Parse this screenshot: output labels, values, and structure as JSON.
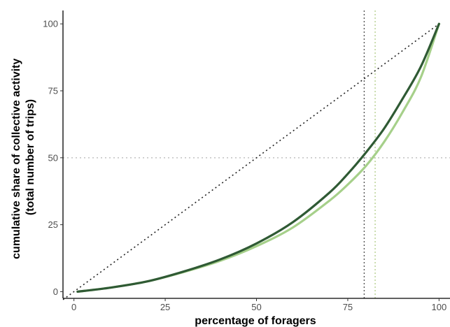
{
  "chart_data": {
    "type": "line",
    "xlabel": "percentage of foragers",
    "ylabel_lines": [
      "cumulative share of collective activity",
      "(total number of trips)"
    ],
    "xlim": [
      -3,
      103
    ],
    "ylim": [
      -2.5,
      105
    ],
    "x_ticks": [
      0,
      25,
      50,
      75,
      100
    ],
    "y_ticks": [
      0,
      25,
      50,
      75,
      100
    ],
    "grid": false,
    "x": [
      1,
      10,
      20,
      30,
      40,
      50,
      60,
      70,
      75,
      80,
      85,
      90,
      95,
      100
    ],
    "series": [
      {
        "color": "#2f5a34",
        "values": [
          0,
          1.5,
          3.8,
          7.5,
          12,
          18,
          26,
          37,
          44,
          52,
          61,
          72,
          84,
          100
        ]
      },
      {
        "color": "#a6d08a",
        "values": [
          0,
          1.5,
          3.8,
          7.3,
          11.5,
          17,
          24,
          34,
          40,
          47,
          56,
          67,
          80,
          100
        ]
      }
    ],
    "equality_line": {
      "from": [
        -3,
        -3
      ],
      "to": [
        100,
        100
      ],
      "color": "#222222"
    },
    "reference_lines": {
      "horizontal_y": 50,
      "vertical": [
        {
          "x": 79.5,
          "color": "#555555"
        },
        {
          "x": 82.5,
          "color": "#b5cf8f"
        }
      ]
    }
  }
}
